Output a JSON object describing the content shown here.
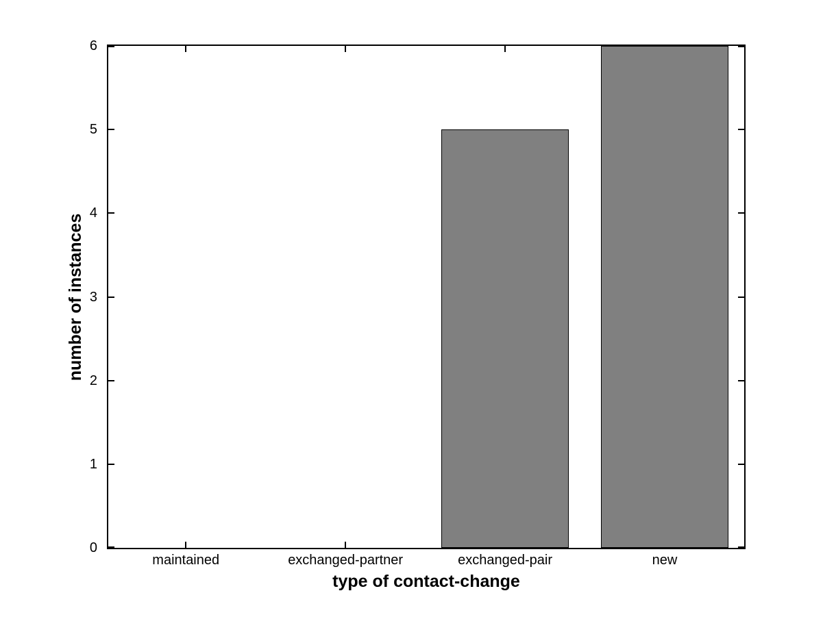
{
  "chart_data": {
    "type": "bar",
    "categories": [
      "maintained",
      "exchanged-partner",
      "exchanged-pair",
      "new"
    ],
    "values": [
      0,
      0,
      5,
      6
    ],
    "title": "",
    "xlabel": "type of contact-change",
    "ylabel": "number of instances",
    "ylim": [
      0,
      6
    ],
    "yticks": [
      0,
      1,
      2,
      3,
      4,
      5,
      6
    ],
    "grid": false,
    "legend": null,
    "bar_color": "#808080",
    "bar_edge_color": "#000000",
    "axis_color": "#000000",
    "background_color": "#ffffff"
  }
}
